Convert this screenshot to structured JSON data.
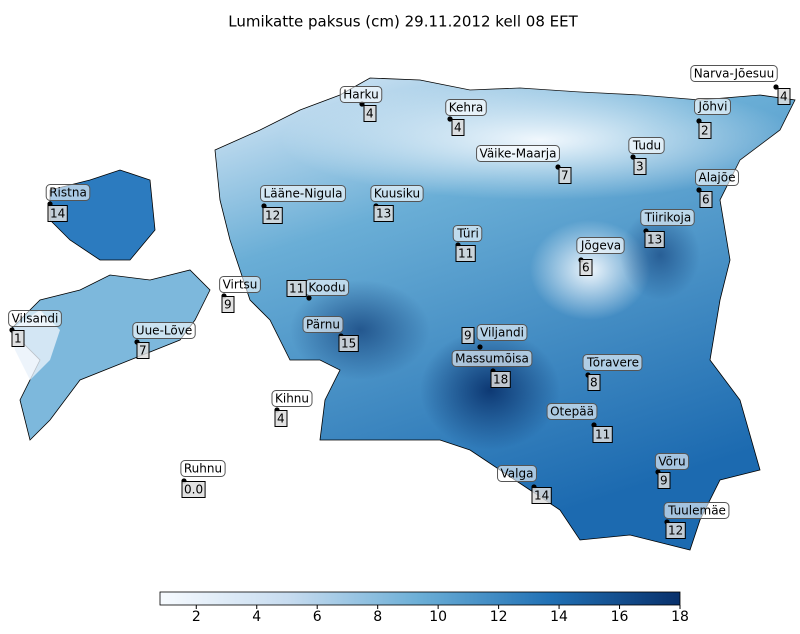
{
  "title": "Lumikatte paksus (cm) 29.11.2012 kell 08 EET",
  "stations": [
    {
      "name": "Narva-Jõesuu",
      "value": "4"
    },
    {
      "name": "Harku",
      "value": "4"
    },
    {
      "name": "Kehra",
      "value": "4"
    },
    {
      "name": "Jõhvi",
      "value": "2"
    },
    {
      "name": "Tudu",
      "value": "3"
    },
    {
      "name": "Väike-Maarja",
      "value": "7"
    },
    {
      "name": "Alajõe",
      "value": "6"
    },
    {
      "name": "Ristna",
      "value": "14"
    },
    {
      "name": "Lääne-Nigula",
      "value": "12"
    },
    {
      "name": "Kuusiku",
      "value": "13"
    },
    {
      "name": "Tiirikoja",
      "value": "13"
    },
    {
      "name": "Türi",
      "value": "11"
    },
    {
      "name": "Jõgeva",
      "value": "6"
    },
    {
      "name": "Virtsu",
      "value": "9"
    },
    {
      "name": "Koodu",
      "value": "11"
    },
    {
      "name": "Vilsandi",
      "value": "1"
    },
    {
      "name": "Uue-Lõve",
      "value": "7"
    },
    {
      "name": "Pärnu",
      "value": "15"
    },
    {
      "name": "Viljandi",
      "value": "9"
    },
    {
      "name": "Massumõisa",
      "value": "18"
    },
    {
      "name": "Tõravere",
      "value": "8"
    },
    {
      "name": "Kihnu",
      "value": "4"
    },
    {
      "name": "Otepää",
      "value": "11"
    },
    {
      "name": "Valga",
      "value": "14"
    },
    {
      "name": "Võru",
      "value": "9"
    },
    {
      "name": "Ruhnu",
      "value": "0.0"
    },
    {
      "name": "Tuulemäe",
      "value": "12"
    }
  ],
  "colorbar": {
    "range": [
      0.8,
      18
    ],
    "ticks": [
      2,
      4,
      6,
      8,
      10,
      12,
      14,
      16,
      18
    ]
  }
}
